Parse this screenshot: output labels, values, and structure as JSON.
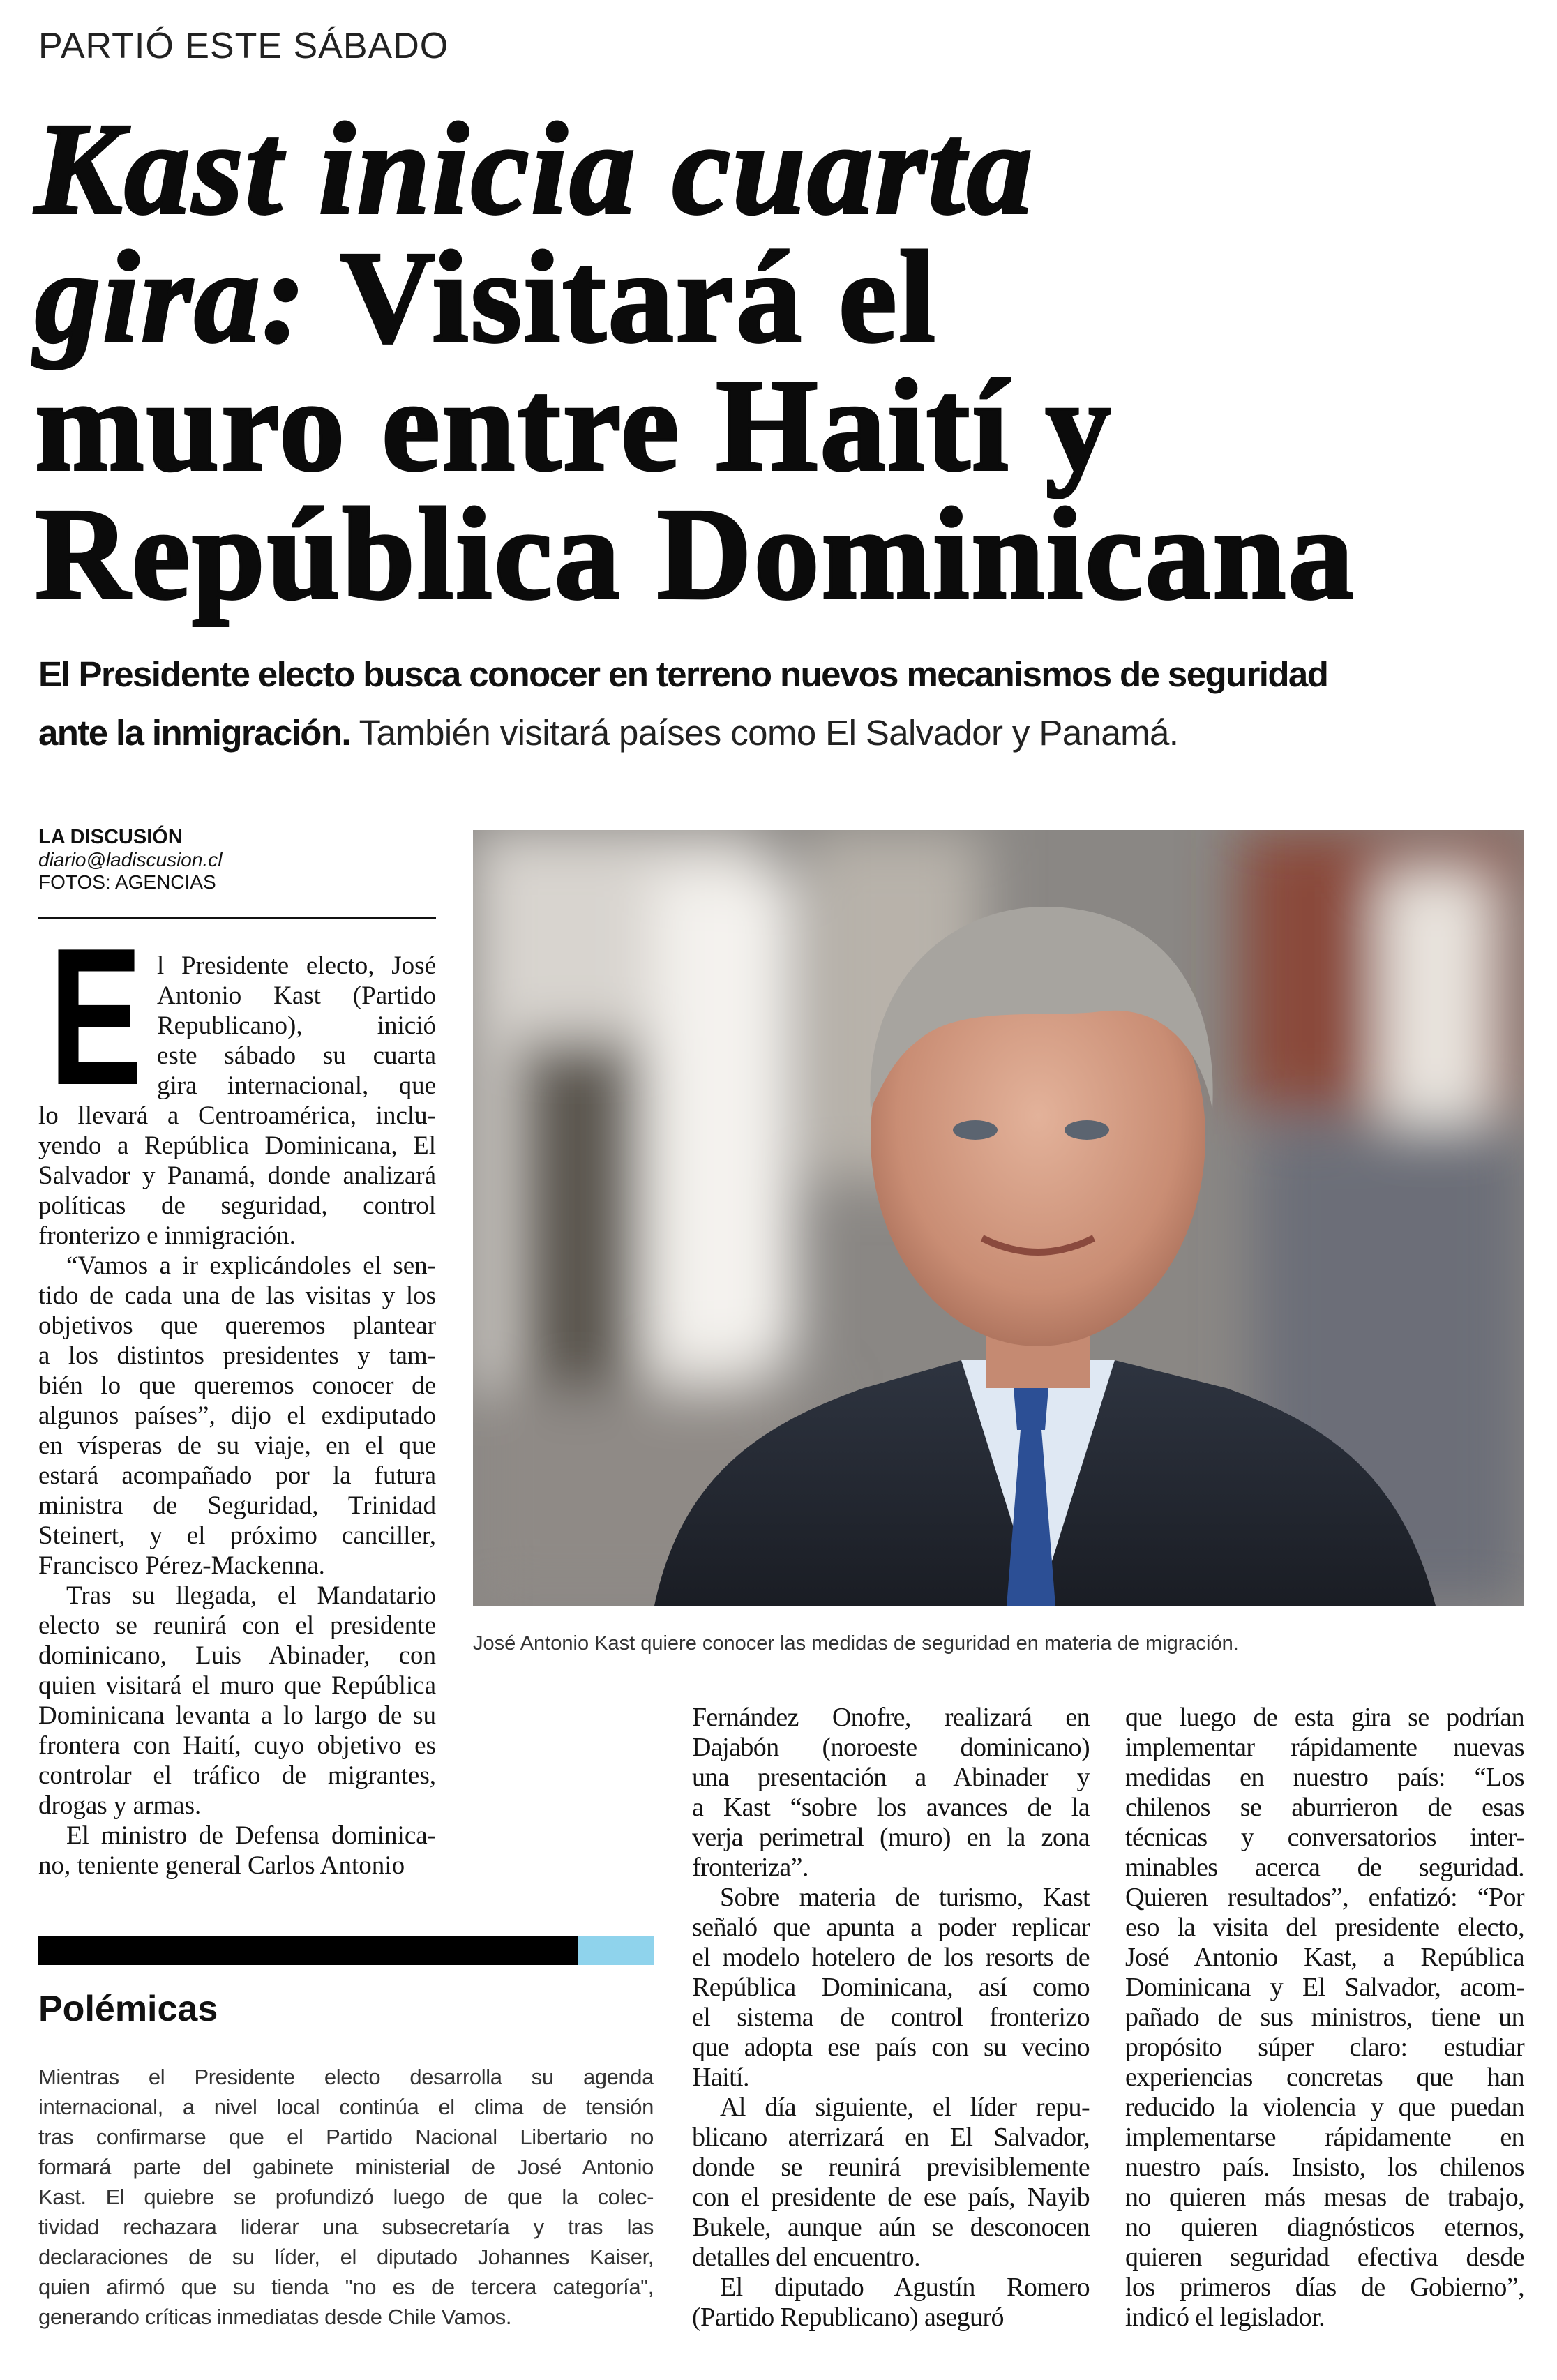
{
  "kicker": "PARTIÓ ESTE SÁBADO",
  "headline": {
    "line1_italic": "Kast inicia cuarta",
    "line2_italic": "gira:",
    "line2_roman": " Visitará el",
    "line3": "muro entre Haití y",
    "line4": "República Dominicana"
  },
  "deck": {
    "line1_bold": "El Presidente electo busca conocer en terreno nuevos mecanismos de seguridad",
    "line2_bold": "ante la inmigración.",
    "line2_regular": " También visitará países como El Salvador y Panamá."
  },
  "byline": {
    "organization": "LA DISCUSIÓN",
    "email": "diario@ladiscusion.cl",
    "photos": "FOTOS: AGENCIAS"
  },
  "drop_cap": "E",
  "photo": {
    "caption": "José Antonio Kast quiere conocer las medidas de seguridad en materia de migración."
  },
  "columns": [
    {
      "paragraphs": [
        {
          "lines": [
            "l Presidente electo, José",
            "Antonio Kast (Partido",
            "Republicano), inició",
            "este sábado su cuarta",
            "gira internacional, que",
            "lo llevará a Centroamérica, inclu-",
            "yendo a República Dominicana, El",
            "Salvador y Panamá, donde analizará",
            "políticas de seguridad, control",
            "fronterizo e inmigración."
          ]
        },
        {
          "lines": [
            "“Vamos a ir explicándoles el sen-",
            "tido de cada una de las visitas y los",
            "objetivos que queremos plantear",
            "a los distintos presidentes y tam-",
            "bién lo que queremos conocer de",
            "algunos países”, dijo el exdiputado",
            "en vísperas de su viaje, en el que",
            "estará acompañado por la futura",
            "ministra de Seguridad, Trinidad",
            "Steinert, y el próximo canciller,",
            "Francisco Pérez-Mackenna."
          ]
        },
        {
          "lines": [
            "Tras su llegada, el Mandatario",
            "electo se reunirá con el presidente",
            "dominicano, Luis Abinader, con",
            "quien visitará el muro que República",
            "Dominicana levanta a lo largo de su",
            "frontera con Haití, cuyo objetivo es",
            "controlar el tráfico de migrantes,",
            "drogas y armas."
          ]
        },
        {
          "lines": [
            "El ministro de Defensa dominica-",
            "no, teniente general Carlos Antonio"
          ]
        }
      ]
    },
    {
      "paragraphs": [
        {
          "lines": [
            "Fernández Onofre, realizará en",
            "Dajabón (noroeste dominicano)",
            "una presentación a Abinader y",
            "a Kast “sobre los avances de la",
            "verja perimetral (muro) en la zona",
            "fronteriza”."
          ]
        },
        {
          "lines": [
            "Sobre materia de turismo, Kast",
            "señaló que apunta a poder replicar",
            "el modelo hotelero de los resorts de",
            "República Dominicana, así como",
            "el sistema de control fronterizo",
            "que adopta ese país con su vecino",
            "Haití."
          ]
        },
        {
          "lines": [
            "Al día siguiente, el líder repu-",
            "blicano aterrizará en El Salvador,",
            "donde se reunirá previsiblemente",
            "con el presidente de ese país, Nayib",
            "Bukele, aunque aún se desconocen",
            "detalles del encuentro."
          ]
        },
        {
          "lines": [
            "El diputado Agustín Romero",
            "(Partido Republicano) aseguró"
          ]
        }
      ]
    },
    {
      "paragraphs": [
        {
          "lines": [
            "que luego de esta gira se podrían",
            "implementar rápidamente nuevas",
            "medidas en nuestro país: “Los",
            "chilenos se aburrieron de esas",
            "técnicas y conversatorios inter-",
            "minables acerca de seguridad.",
            "Quieren resultados”, enfatizó: “Por",
            "eso la visita del presidente electo,",
            "José Antonio Kast, a República",
            "Dominicana y El Salvador, acom-",
            "pañado de sus ministros, tiene un",
            "propósito súper claro: estudiar",
            "experiencias concretas que han",
            "reducido la violencia y que puedan",
            "implementarse rápidamente en",
            "nuestro país. Insisto, los chilenos",
            "no quieren más mesas de trabajo,",
            "no quieren diagnósticos eternos,",
            "quieren seguridad efectiva desde",
            "los primeros días de Gobierno”,",
            "indicó el legislador."
          ]
        }
      ]
    }
  ],
  "sidebar_box": {
    "title": "Polémicas",
    "accent_color": "#8fd3ec",
    "lines": [
      "Mientras el Presidente electo desarrolla su agenda",
      "internacional, a nivel local continúa el clima de tensión",
      "tras confirmarse que el Partido Nacional Libertario no",
      "formará parte del gabinete ministerial de José Antonio",
      "Kast. El quiebre se profundizó luego de que la colec-",
      "tividad rechazara liderar una subsecretaría y tras las",
      "declaraciones de su líder, el diputado Johannes Kaiser,",
      "quien afirmó que su tienda \"no es de tercera categoría\",",
      "generando críticas inmediatas desde Chile Vamos."
    ]
  }
}
